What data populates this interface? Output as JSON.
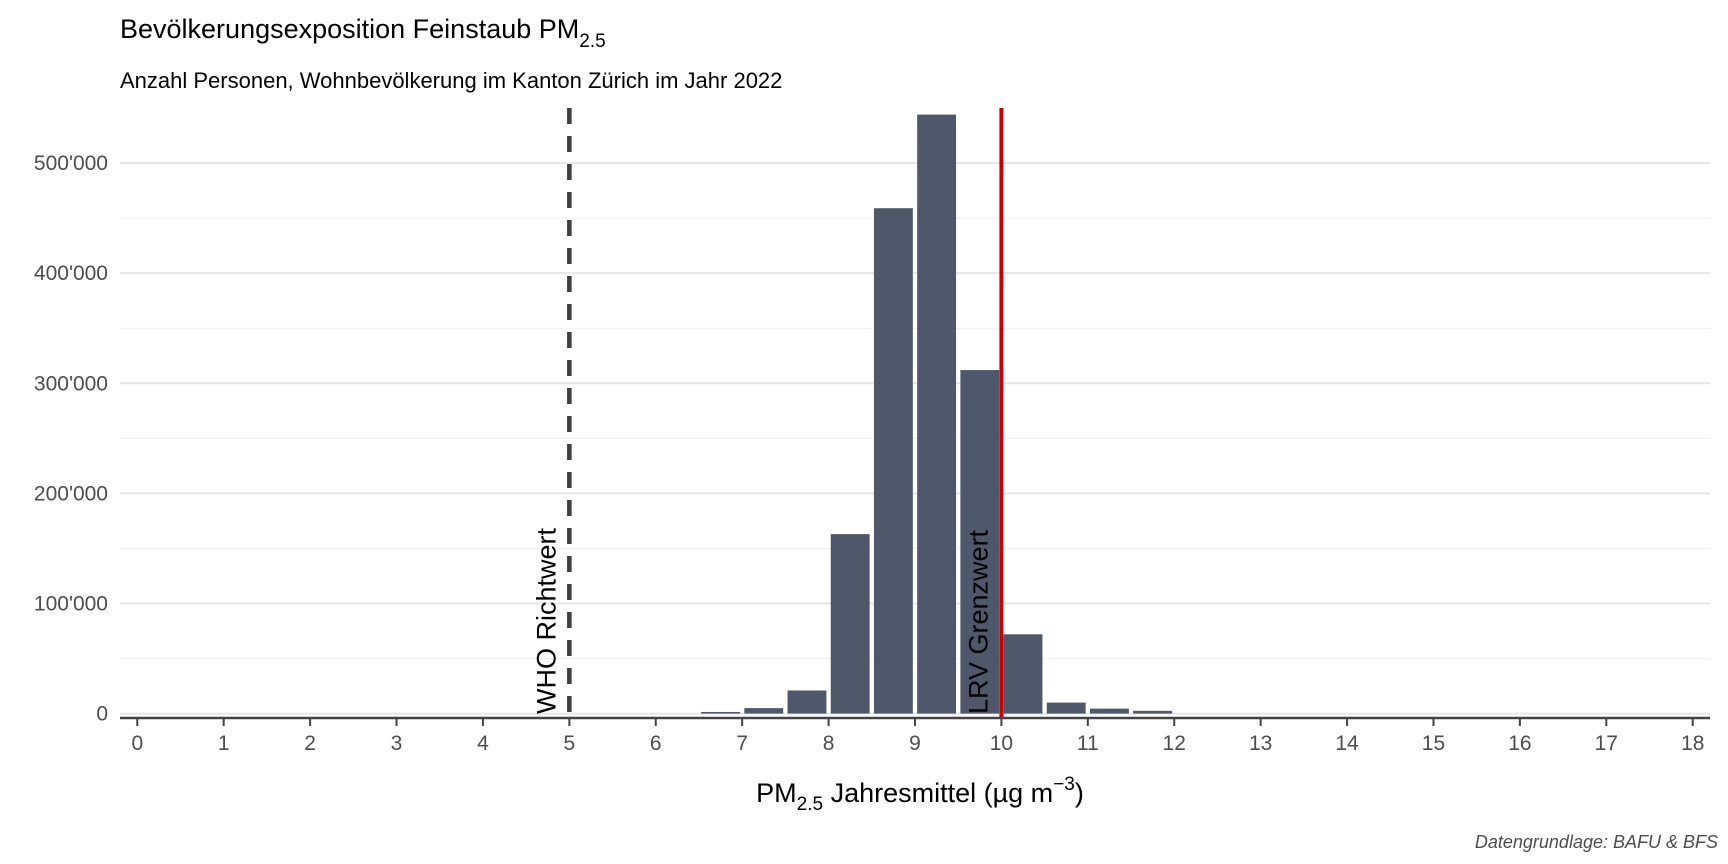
{
  "chart_data": {
    "type": "bar",
    "title": {
      "main": "Bevölkerungsexposition Feinstaub PM",
      "sub": "2.5"
    },
    "subtitle": "Anzahl Personen, Wohnbevölkerung im Kanton Zürich im Jahr 2022",
    "xlabel": {
      "pre": "PM",
      "sub": "2.5",
      "mid": " Jahresmittel (µg m",
      "sup": "−3",
      "post": ")"
    },
    "ylabel": "",
    "caption": "Datengrundlage: BAFU & BFS",
    "x_ticks": [
      "0",
      "1",
      "2",
      "3",
      "4",
      "5",
      "6",
      "7",
      "8",
      "9",
      "10",
      "11",
      "12",
      "13",
      "14",
      "15",
      "16",
      "17",
      "18"
    ],
    "y_ticks": [
      {
        "value": 0,
        "label": "0"
      },
      {
        "value": 100000,
        "label": "100'000"
      },
      {
        "value": 200000,
        "label": "200'000"
      },
      {
        "value": 300000,
        "label": "300'000"
      },
      {
        "value": 400000,
        "label": "400'000"
      },
      {
        "value": 500000,
        "label": "500'000"
      }
    ],
    "xlim": [
      -0.2,
      18.2
    ],
    "ylim": [
      -4000,
      550000
    ],
    "bar_width": 0.45,
    "bar_color": "#4f586b",
    "bins": [
      {
        "x": 6.75,
        "value": 1500
      },
      {
        "x": 7.25,
        "value": 5000
      },
      {
        "x": 7.75,
        "value": 21000
      },
      {
        "x": 8.25,
        "value": 163000
      },
      {
        "x": 8.75,
        "value": 459000
      },
      {
        "x": 9.25,
        "value": 544000
      },
      {
        "x": 9.75,
        "value": 312000
      },
      {
        "x": 10.25,
        "value": 72000
      },
      {
        "x": 10.75,
        "value": 10000
      },
      {
        "x": 11.25,
        "value": 4500
      },
      {
        "x": 11.75,
        "value": 2500
      }
    ],
    "reference_lines": [
      {
        "x": 5,
        "label": "WHO Richtwert",
        "style": "dashed",
        "color": "#3f3f3f"
      },
      {
        "x": 10,
        "label": "LRV Grenzwert",
        "style": "solid",
        "color": "#cc0000"
      }
    ],
    "grid": {
      "major_y": true,
      "minor_y": true,
      "x": false
    },
    "legend": "none"
  }
}
